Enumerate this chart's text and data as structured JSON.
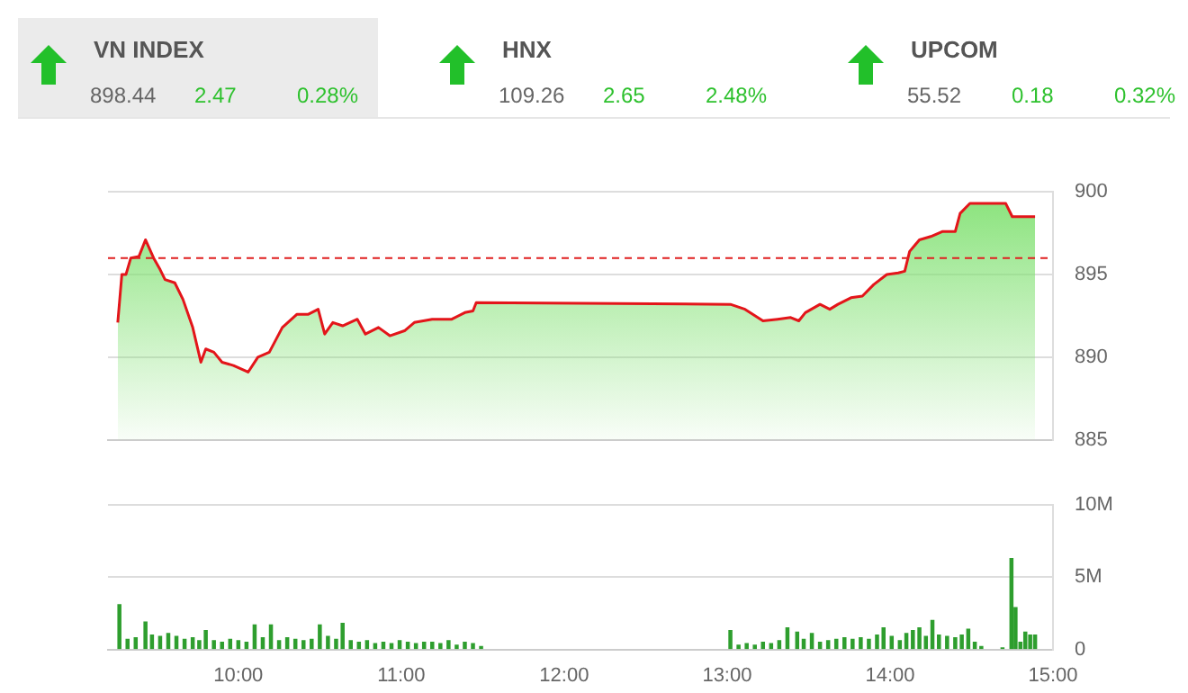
{
  "chart_data": [
    {
      "type": "other",
      "title": "VN INDEX",
      "annotations": [
        "898.44",
        "2.47",
        "0.28%"
      ]
    },
    {
      "type": "other",
      "title": "HNX",
      "annotations": [
        "109.26",
        "2.65",
        "2.48%"
      ]
    },
    {
      "type": "other",
      "title": "UPCOM",
      "annotations": [
        "55.52",
        "0.18",
        "0.32%"
      ]
    },
    {
      "type": "area",
      "xlim": [
        9.2,
        15
      ],
      "xticks": [
        {
          "value": 10,
          "label": null
        },
        {
          "value": 11,
          "label": null
        },
        {
          "value": 12,
          "label": null
        },
        {
          "value": 13,
          "label": null
        },
        {
          "value": 14,
          "label": null
        },
        {
          "value": 15,
          "label": null
        }
      ],
      "ylim": [
        885,
        900
      ],
      "yticks": [
        885,
        890,
        895,
        900
      ],
      "grid": "y",
      "tick_labels": "y",
      "marker": "none",
      "ref_lines": [
        {
          "axis": "y",
          "value": 896,
          "color": "#e02020",
          "line_style": "dashed"
        }
      ],
      "series": [
        {
          "color": "#e3151a",
          "x": [
            9.26,
            9.285,
            9.31,
            9.34,
            9.39,
            9.43,
            9.48,
            9.52,
            9.55,
            9.61,
            9.66,
            9.72,
            9.77,
            9.8,
            9.85,
            9.9,
            9.97,
            10.06,
            10.12,
            10.19,
            10.27,
            10.36,
            10.43,
            10.49,
            10.53,
            10.58,
            10.64,
            10.73,
            10.78,
            10.86,
            10.93,
            11.02,
            11.08,
            11.19,
            11.26,
            11.31,
            11.39,
            11.44,
            11.46,
            13.02,
            13.11,
            13.22,
            13.31,
            13.39,
            13.44,
            13.48,
            13.57,
            13.63,
            13.68,
            13.76,
            13.83,
            13.9,
            13.98,
            14.05,
            14.09,
            14.12,
            14.18,
            14.25,
            14.32,
            14.4,
            14.43,
            14.49,
            14.71,
            14.75,
            14.89
          ],
          "values": [
            892.1,
            895.0,
            895.0,
            896.0,
            896.1,
            897.1,
            896.0,
            895.3,
            894.7,
            894.5,
            893.5,
            891.8,
            889.7,
            890.5,
            890.3,
            889.7,
            889.5,
            889.1,
            890.0,
            890.3,
            891.8,
            892.6,
            892.6,
            892.9,
            891.4,
            892.1,
            891.9,
            892.3,
            891.4,
            891.8,
            891.3,
            891.6,
            892.1,
            892.3,
            892.3,
            892.3,
            892.7,
            892.8,
            893.3,
            893.2,
            892.9,
            892.2,
            892.3,
            892.4,
            892.2,
            892.7,
            893.2,
            892.9,
            893.2,
            893.6,
            893.7,
            894.4,
            895.0,
            895.1,
            895.2,
            896.4,
            897.1,
            897.3,
            897.6,
            897.6,
            898.7,
            899.3,
            899.3,
            898.5,
            898.5
          ]
        }
      ]
    },
    {
      "type": "bar",
      "xlim": [
        9.2,
        15
      ],
      "xticks": [
        {
          "value": 10,
          "label": "10:00"
        },
        {
          "value": 11,
          "label": "11:00"
        },
        {
          "value": 12,
          "label": "12:00"
        },
        {
          "value": 13,
          "label": "13:00"
        },
        {
          "value": 14,
          "label": "14:00"
        },
        {
          "value": 15,
          "label": "15:00"
        }
      ],
      "ylim": [
        0,
        10
      ],
      "yticks": [
        0,
        {
          "value": 5,
          "label": "5M"
        },
        {
          "value": 10,
          "label": "10M"
        }
      ],
      "grid": "y",
      "series": [
        {
          "color": "#2e9e2e",
          "x": [
            9.27,
            9.32,
            9.37,
            9.43,
            9.47,
            9.52,
            9.57,
            9.62,
            9.67,
            9.72,
            9.76,
            9.8,
            9.85,
            9.9,
            9.95,
            10.0,
            10.05,
            10.1,
            10.15,
            10.2,
            10.25,
            10.3,
            10.35,
            10.4,
            10.45,
            10.5,
            10.55,
            10.6,
            10.64,
            10.69,
            10.74,
            10.79,
            10.84,
            10.89,
            10.94,
            10.99,
            11.04,
            11.09,
            11.14,
            11.19,
            11.24,
            11.29,
            11.34,
            11.39,
            11.44,
            11.49,
            13.02,
            13.07,
            13.12,
            13.17,
            13.22,
            13.27,
            13.32,
            13.37,
            13.43,
            13.47,
            13.52,
            13.57,
            13.62,
            13.67,
            13.72,
            13.77,
            13.82,
            13.87,
            13.92,
            13.96,
            14.01,
            14.06,
            14.1,
            14.14,
            14.18,
            14.22,
            14.26,
            14.3,
            14.35,
            14.4,
            14.44,
            14.48,
            14.52,
            14.56,
            14.69,
            14.745,
            14.77,
            14.8,
            14.83,
            14.86,
            14.89
          ],
          "values": [
            3.1,
            0.7,
            0.8,
            1.9,
            1.0,
            0.9,
            1.1,
            0.9,
            0.7,
            0.8,
            0.6,
            1.3,
            0.6,
            0.5,
            0.7,
            0.6,
            0.5,
            1.7,
            0.8,
            1.7,
            0.6,
            0.8,
            0.7,
            0.6,
            0.7,
            1.7,
            0.9,
            0.7,
            1.8,
            0.6,
            0.5,
            0.6,
            0.4,
            0.5,
            0.4,
            0.6,
            0.5,
            0.4,
            0.5,
            0.5,
            0.4,
            0.6,
            0.3,
            0.5,
            0.4,
            0.2,
            1.3,
            0.3,
            0.4,
            0.3,
            0.5,
            0.4,
            0.6,
            1.5,
            1.2,
            0.7,
            1.1,
            0.5,
            0.6,
            0.7,
            0.8,
            0.7,
            0.8,
            0.7,
            1.0,
            1.5,
            0.9,
            0.6,
            1.1,
            1.3,
            1.5,
            0.9,
            2.0,
            1.0,
            0.9,
            0.8,
            1.0,
            1.4,
            0.5,
            0.2,
            0.1,
            6.3,
            2.9,
            0.5,
            1.2,
            1.0,
            1.0
          ]
        }
      ]
    }
  ]
}
